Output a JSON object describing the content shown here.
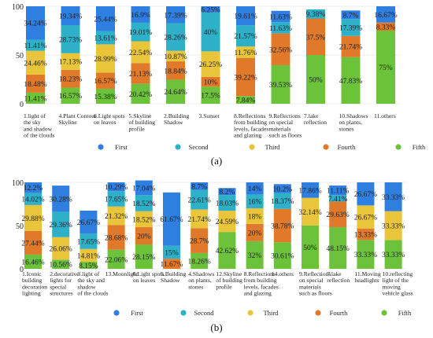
{
  "colors": {
    "First": "#2f7fe0",
    "Second": "#2eb0c9",
    "Third": "#e8c53a",
    "Fourth": "#e07a2a",
    "Fifth": "#6cc23a"
  },
  "chart_data": [
    {
      "type": "bar",
      "stacked": true,
      "panel_label": "(a)",
      "ylim": [
        0,
        100
      ],
      "yticks": [
        0,
        50,
        100
      ],
      "series_order_bottom_to_top": [
        "Fifth",
        "Fourth",
        "Third",
        "Second",
        "First"
      ],
      "legend": [
        "First",
        "Second",
        "Third",
        "Fourth",
        "Fifth"
      ],
      "legend_position": "bottom",
      "categories": [
        "1.light of the sky and shadow of the clouds",
        "4.Plant Contour Skyline",
        "6.Light spots on leaves",
        "5.Skyline of building profile",
        "2.Building Shadow",
        "3.Sunset",
        "8.Reflections from building levels, facades and glazing",
        "9.Reflections on special materials such as floors",
        "7.lake reflection",
        "10.Shadows on plants, stones",
        "11.others"
      ],
      "category_lines": [
        [
          "1.light of",
          "the sky",
          "and shadow",
          "of the clouds"
        ],
        [
          "4.Plant Contour",
          "Skyline"
        ],
        [
          "6.Light spots",
          "on leaves"
        ],
        [
          "5.Skyline",
          "of building",
          "profile"
        ],
        [
          "2.Building",
          "Shadow"
        ],
        [
          "3.Sunset"
        ],
        [
          "8.Reflections",
          "from building",
          "levels, facades",
          "and glazing"
        ],
        [
          "9.Reflections",
          "on special",
          "materials",
          "such as floors"
        ],
        [
          "7.lake",
          "reflection"
        ],
        [
          "10.Shadows",
          "on plants,",
          "stones"
        ],
        [
          "11.others"
        ]
      ],
      "series": [
        {
          "name": "First",
          "values": [
            34.24,
            19.34,
            25.44,
            16.9,
            17.39,
            6.25,
            19.61,
            11.63,
            0,
            8.7,
            16.67
          ],
          "labels": [
            "34.24%",
            "19.34%",
            "25.44%",
            "16.9%",
            "17.39%",
            "6.25%",
            "19.61%",
            "11.63%",
            "",
            "8.7%",
            "16.67%"
          ]
        },
        {
          "name": "Second",
          "values": [
            11.41,
            28.73,
            13.61,
            19.01,
            28.26,
            40,
            21.57,
            11.63,
            9.38,
            17.39,
            0
          ],
          "labels": [
            "11.41%",
            "28.73%",
            "13.61%",
            "19.01%",
            "28.26%",
            "40%",
            "21.57%",
            "11.63%",
            "9.38%",
            "17.39%",
            ""
          ]
        },
        {
          "name": "Third",
          "values": [
            24.46,
            17.13,
            28.99,
            22.54,
            10.87,
            26.25,
            11.76,
            0,
            0,
            0,
            0
          ],
          "labels": [
            "24.46%",
            "17.13%",
            "28.99%",
            "22.54%",
            "10.87%",
            "26.25%",
            "11.76%",
            "",
            "",
            "",
            ""
          ]
        },
        {
          "name": "Fourth",
          "values": [
            18.48,
            18.23,
            16.57,
            21.13,
            18.84,
            10,
            39.22,
            32.56,
            37.5,
            21.74,
            8.33
          ],
          "labels": [
            "18.48%",
            "18.23%",
            "16.57%",
            "21.13%",
            "18.84%",
            "10%",
            "39.22%",
            "32.56%",
            "37.5%",
            "21.74%",
            "8.33%"
          ]
        },
        {
          "name": "Fifth",
          "values": [
            11.41,
            16.57,
            15.38,
            20.42,
            24.64,
            17.5,
            7.84,
            39.53,
            50,
            47.83,
            75
          ],
          "labels": [
            "11.41%",
            "16.57%",
            "15.38%",
            "20.42%",
            "24.64%",
            "17.5%",
            "7.84%",
            "39.53%",
            "50%",
            "47.83%",
            "75%"
          ]
        }
      ]
    },
    {
      "type": "bar",
      "stacked": true,
      "panel_label": "(b)",
      "ylim": [
        0,
        100
      ],
      "yticks": [
        0,
        50,
        100
      ],
      "series_order_bottom_to_top": [
        "Fifth",
        "Fourth",
        "Third",
        "Second",
        "First"
      ],
      "legend": [
        "First",
        "Second",
        "Third",
        "Fourth",
        "Fifth"
      ],
      "legend_position": "bottom",
      "categories": [
        "1.Iconic building decoration lighting",
        "2.decorative lights for special structures",
        "3.light of the sky and shadow of the clouds",
        "13.Moonlight",
        "6.Light spots on leaves",
        "5.Building Shadow",
        "4.Shadows on plants, stones",
        "12.Skyline of building profile",
        "8.Reflections from building levels, facades and glazing",
        "14.others",
        "9.Reflections on special materials such as floors",
        "7.lake reflection",
        "11.Moving headlights",
        "10.reflecting light of the moving vehicle glass"
      ],
      "category_lines": [
        [
          "1.Iconic",
          "building",
          "decoration",
          "lighting"
        ],
        [
          "2.decorative",
          "lights for",
          "special",
          "structures"
        ],
        [
          "3.light of",
          "the sky and",
          "shadow",
          "of the clouds"
        ],
        [
          "13.Moonlight"
        ],
        [
          "6.Light spots",
          "on leaves"
        ],
        [
          "5.Building",
          "Shadow"
        ],
        [
          "4.Shadows",
          "on plants,",
          "stones"
        ],
        [
          "12.Skyline",
          "of building",
          "profile"
        ],
        [
          "8.Reflections",
          "from building",
          "levels, facades",
          "and glazing"
        ],
        [
          "14.others"
        ],
        [
          "9.Reflections",
          "on special",
          "materials",
          "such as floors"
        ],
        [
          "7.lake",
          "reflection"
        ],
        [
          "11.Moving",
          "headlights"
        ],
        [
          "10.reflecting",
          "light of the",
          "moving",
          "vehicle glass"
        ]
      ],
      "series": [
        {
          "name": "First",
          "values": [
            12.2,
            30.28,
            26.67,
            10.29,
            17.04,
            61.67,
            8.7,
            8.2,
            14,
            10.2,
            17.86,
            11.11,
            26.67,
            33.33
          ],
          "labels": [
            "12.2%",
            "30.28%",
            "26.67%",
            "10.29%",
            "17.04%",
            "61.67%",
            "8.7%",
            "8.2%",
            "14%",
            "10.2%",
            "17.86%",
            "11.11%",
            "26.67%",
            "33.33%"
          ]
        },
        {
          "name": "Second",
          "values": [
            14.02,
            29.36,
            17.65,
            17.65,
            18.52,
            15,
            22.61,
            18.03,
            16,
            18.37,
            0,
            7.41,
            0,
            0
          ],
          "labels": [
            "14.02%",
            "29.36%",
            "17.65%",
            "17.65%",
            "18.52%",
            "15%",
            "22.61%",
            "18.03%",
            "16%",
            "18.37%",
            "",
            "7.41%",
            "",
            ""
          ]
        },
        {
          "name": "Third",
          "values": [
            29.88,
            26.06,
            14.81,
            21.32,
            18.52,
            0,
            21.74,
            24.59,
            18,
            0,
            32.14,
            0,
            26.67,
            33.33
          ],
          "labels": [
            "29.88%",
            "26.06%",
            "14.81%",
            "21.32%",
            "18.52%",
            "",
            "21.74%",
            "24.59%",
            "18%",
            "",
            "32.14%",
            "",
            "26.67%",
            "33.33%"
          ]
        },
        {
          "name": "Fourth",
          "values": [
            27.44,
            0,
            0,
            28.68,
            20,
            11.67,
            28.7,
            0,
            20,
            38.78,
            0,
            29.63,
            13.33,
            0
          ],
          "labels": [
            "27.44%",
            "",
            "",
            "28.68%",
            "20%",
            "11.67%",
            "28.7%",
            "",
            "20%",
            "38.78%",
            "",
            "29.63%",
            "13.33%",
            ""
          ]
        },
        {
          "name": "Fifth",
          "values": [
            16.46,
            10.56,
            8.15,
            22.06,
            28.15,
            0,
            18.26,
            42.62,
            32,
            30.61,
            50,
            48.15,
            33.33,
            33.33
          ],
          "labels": [
            "16.46%",
            "10.56%",
            "8.15%",
            "22.06%",
            "28.15%",
            "",
            "18.26%",
            "42.62%",
            "32%",
            "30.61%",
            "50%",
            "48.15%",
            "33.33%",
            "33.33%"
          ]
        }
      ]
    }
  ]
}
